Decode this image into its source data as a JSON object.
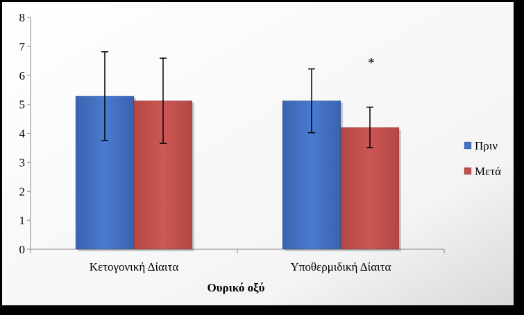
{
  "chart_data": {
    "type": "bar",
    "title": "",
    "xlabel": "Ουρικό οξύ",
    "ylabel": "",
    "ylim": [
      0,
      8
    ],
    "yticks": [
      0,
      1,
      2,
      3,
      4,
      5,
      6,
      7,
      8
    ],
    "categories": [
      "Κετογονική Δίαιτα",
      "Υποθερμιδική Δίαιτα"
    ],
    "series": [
      {
        "name": "Πριν",
        "color": "#4472C4",
        "values": [
          5.28,
          5.12
        ],
        "error": [
          1.53,
          1.1
        ]
      },
      {
        "name": "Μετά",
        "color": "#C0504D",
        "values": [
          5.12,
          4.2
        ],
        "error": [
          1.47,
          0.7
        ]
      }
    ],
    "annotations": [
      {
        "text": "*",
        "category": 1,
        "series": 1
      }
    ],
    "grid": false,
    "legend_position": "right"
  }
}
